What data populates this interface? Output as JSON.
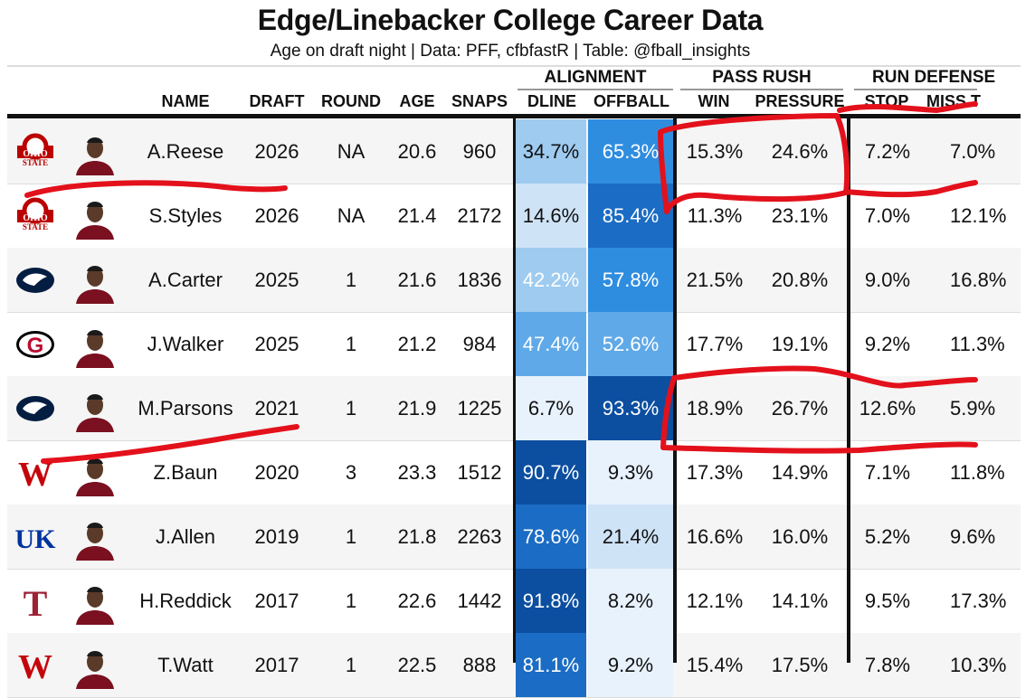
{
  "title": "Edge/Linebacker College Career Data",
  "subtitle": "Age on draft night | Data: PFF, cfbfastR | Table: @fball_insights",
  "groups": {
    "alignment": "ALIGNMENT",
    "pass_rush": "PASS RUSH",
    "run_defense": "RUN DEFENSE"
  },
  "columns": {
    "name": "NAME",
    "draft": "DRAFT",
    "round": "ROUND",
    "age": "AGE",
    "snaps": "SNAPS",
    "dline": "DLINE",
    "offball": "OFFBALL",
    "win": "WIN",
    "pressure": "PRESSURE",
    "stop": "STOP",
    "miss": "MISS T"
  },
  "colors": {
    "annotation_red": "#e3111b",
    "alignment_scale": [
      "#e8f2fc",
      "#cfe3f7",
      "#9ecbef",
      "#5fa9e8",
      "#2f8de0",
      "#1b6cc4",
      "#0c4ea0"
    ]
  },
  "rows": [
    {
      "logo": "ohio-state-logo",
      "name": "A.Reese",
      "draft": "2026",
      "round": "NA",
      "age": "20.6",
      "snaps": "960",
      "dline": "34.7%",
      "offball": "65.3%",
      "dline_pct": 34.7,
      "offball_pct": 65.3,
      "win": "15.3%",
      "pressure": "24.6%",
      "stop": "7.2%",
      "miss": "7.0%"
    },
    {
      "logo": "ohio-state-logo",
      "name": "S.Styles",
      "draft": "2026",
      "round": "NA",
      "age": "21.4",
      "snaps": "2172",
      "dline": "14.6%",
      "offball": "85.4%",
      "dline_pct": 14.6,
      "offball_pct": 85.4,
      "win": "11.3%",
      "pressure": "23.1%",
      "stop": "7.0%",
      "miss": "12.1%"
    },
    {
      "logo": "penn-state-logo",
      "name": "A.Carter",
      "draft": "2025",
      "round": "1",
      "age": "21.6",
      "snaps": "1836",
      "dline": "42.2%",
      "offball": "57.8%",
      "dline_pct": 42.2,
      "offball_pct": 57.8,
      "win": "21.5%",
      "pressure": "20.8%",
      "stop": "9.0%",
      "miss": "16.8%"
    },
    {
      "logo": "georgia-logo",
      "name": "J.Walker",
      "draft": "2025",
      "round": "1",
      "age": "21.2",
      "snaps": "984",
      "dline": "47.4%",
      "offball": "52.6%",
      "dline_pct": 47.4,
      "offball_pct": 52.6,
      "win": "17.7%",
      "pressure": "19.1%",
      "stop": "9.2%",
      "miss": "11.3%"
    },
    {
      "logo": "penn-state-logo",
      "name": "M.Parsons",
      "draft": "2021",
      "round": "1",
      "age": "21.9",
      "snaps": "1225",
      "dline": "6.7%",
      "offball": "93.3%",
      "dline_pct": 6.7,
      "offball_pct": 93.3,
      "win": "18.9%",
      "pressure": "26.7%",
      "stop": "12.6%",
      "miss": "5.9%"
    },
    {
      "logo": "wisconsin-logo",
      "name": "Z.Baun",
      "draft": "2020",
      "round": "3",
      "age": "23.3",
      "snaps": "1512",
      "dline": "90.7%",
      "offball": "9.3%",
      "dline_pct": 90.7,
      "offball_pct": 9.3,
      "win": "17.3%",
      "pressure": "14.9%",
      "stop": "7.1%",
      "miss": "11.8%"
    },
    {
      "logo": "kentucky-logo",
      "name": "J.Allen",
      "draft": "2019",
      "round": "1",
      "age": "21.8",
      "snaps": "2263",
      "dline": "78.6%",
      "offball": "21.4%",
      "dline_pct": 78.6,
      "offball_pct": 21.4,
      "win": "16.6%",
      "pressure": "16.0%",
      "stop": "5.2%",
      "miss": "9.6%"
    },
    {
      "logo": "temple-logo",
      "name": "H.Reddick",
      "draft": "2017",
      "round": "1",
      "age": "22.6",
      "snaps": "1442",
      "dline": "91.8%",
      "offball": "8.2%",
      "dline_pct": 91.8,
      "offball_pct": 8.2,
      "win": "12.1%",
      "pressure": "14.1%",
      "stop": "9.5%",
      "miss": "17.3%"
    },
    {
      "logo": "wisconsin-logo",
      "name": "T.Watt",
      "draft": "2017",
      "round": "1",
      "age": "22.5",
      "snaps": "888",
      "dline": "81.1%",
      "offball": "9.2%",
      "dline_pct": 81.1,
      "offball_pct": 9.2,
      "win": "15.4%",
      "pressure": "17.5%",
      "stop": "7.8%",
      "miss": "10.3%"
    }
  ],
  "icons": {
    "ohio-state-logo": "OHIO STATE",
    "penn-state-logo": "nittany-lion",
    "georgia-logo": "G",
    "wisconsin-logo": "W",
    "kentucky-logo": "UK",
    "temple-logo": "T",
    "photo": "player-headshot-icon"
  }
}
